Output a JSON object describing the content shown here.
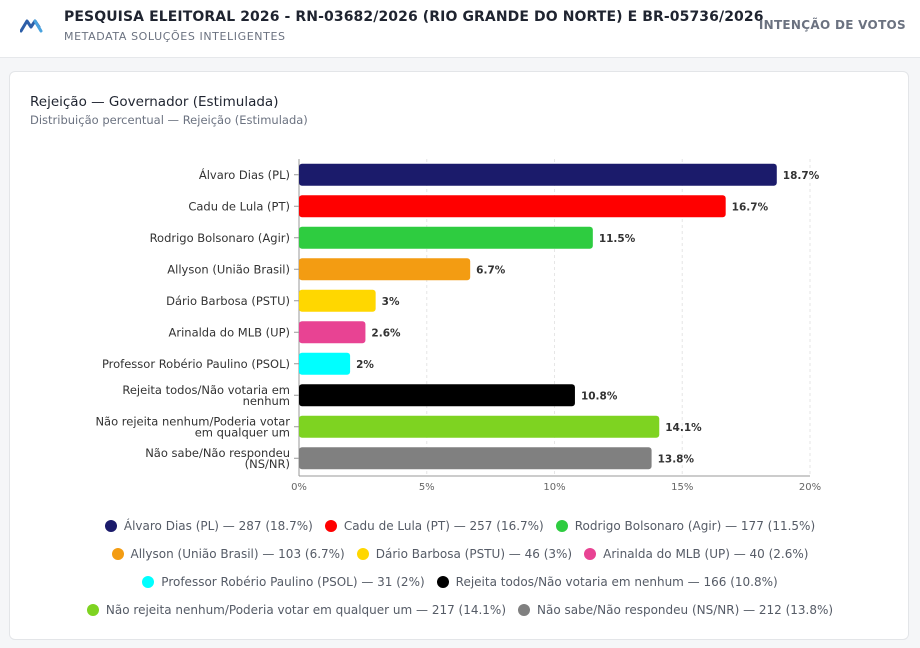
{
  "header": {
    "title": "PESQUISA ELEITORAL 2026 - RN-03682/2026 (RIO GRANDE DO NORTE) E BR-05736/2026",
    "subtitle": "METADATA SOLUÇÕES INTELIGENTES",
    "tag": "INTENÇÃO DE VOTOS",
    "logo_icon": "metadata-logo-icon"
  },
  "chart_data": {
    "type": "bar",
    "orientation": "horizontal",
    "title": "Rejeição — Governador (Estimulada)",
    "subtitle": "Distribuição percentual — Rejeição (Estimulada)",
    "categories": [
      [
        "Álvaro Dias (PL)"
      ],
      [
        "Cadu de Lula (PT)"
      ],
      [
        "Rodrigo Bolsonaro (Agir)"
      ],
      [
        "Allyson (União Brasil)"
      ],
      [
        "Dário Barbosa (PSTU)"
      ],
      [
        "Arinalda do MLB (UP)"
      ],
      [
        "Professor Robério Paulino (PSOL)"
      ],
      [
        "Rejeita todos/Não votaria em",
        "nenhum"
      ],
      [
        "Não rejeita nenhum/Poderia votar",
        "em qualquer um"
      ],
      [
        "Não sabe/Não respondeu",
        "(NS/NR)"
      ]
    ],
    "values": [
      18.7,
      16.7,
      11.5,
      6.7,
      3,
      2.6,
      2,
      10.8,
      14.1,
      13.8
    ],
    "value_labels": [
      "18.7%",
      "16.7%",
      "11.5%",
      "6.7%",
      "3%",
      "2.6%",
      "2%",
      "10.8%",
      "14.1%",
      "13.8%"
    ],
    "colors": [
      "#1b1b6b",
      "#ff0000",
      "#2ecc40",
      "#f39c12",
      "#ffd700",
      "#e84393",
      "#00ffff",
      "#000000",
      "#7ed321",
      "#808080"
    ],
    "xlim": [
      0,
      20
    ],
    "xticks": [
      "0%",
      "5%",
      "10%",
      "15%",
      "20%"
    ],
    "xtick_values": [
      0,
      5,
      10,
      15,
      20
    ],
    "grid": true,
    "legend_position": "bottom",
    "legend": [
      [
        "Álvaro Dias (PL) — 287 (18.7%)",
        "Cadu de Lula (PT) — 257 (16.7%)",
        "Rodrigo Bolsonaro (Agir) — 177 (11.5%)"
      ],
      [
        "Allyson (União Brasil) — 103 (6.7%)",
        "Dário Barbosa (PSTU) — 46 (3%)",
        "Arinalda do MLB (UP) — 40 (2.6%)"
      ],
      [
        "Professor Robério Paulino (PSOL) — 31 (2%)",
        "Rejeita todos/Não votaria em nenhum — 166 (10.8%)"
      ],
      [
        "Não rejeita nenhum/Poderia votar em qualquer um — 217 (14.1%)",
        "Não sabe/Não respondeu (NS/NR) — 212 (13.8%)"
      ]
    ]
  }
}
